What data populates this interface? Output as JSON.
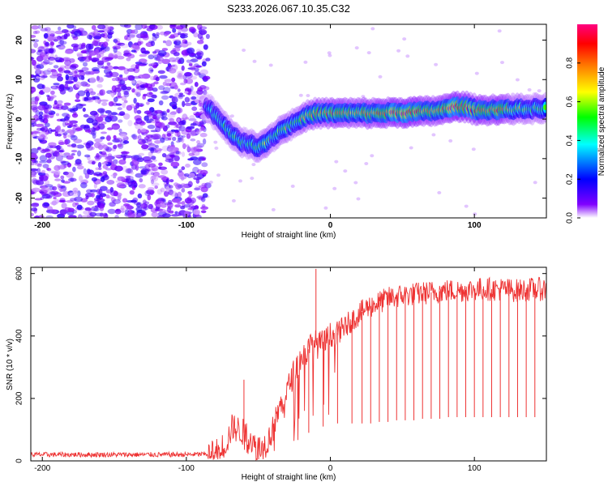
{
  "title": "S233.2026.067.10.35.C32",
  "chart_data": [
    {
      "type": "heatmap",
      "title": "S233.2026.067.10.35.C32",
      "xlabel": "Height of straight line (km)",
      "ylabel": "Frequency (Hz)",
      "xlim": [
        -208,
        150
      ],
      "ylim": [
        -25,
        24
      ],
      "xticks": [
        -200,
        -100,
        0,
        100
      ],
      "yticks": [
        -20,
        -10,
        0,
        10,
        20
      ],
      "colorbar": {
        "label": "Normalized spectral amplitude",
        "range": [
          0,
          1
        ],
        "ticks": [
          "0.0",
          "0.2",
          "0.4",
          "0.6",
          "0.8"
        ],
        "tick_values": [
          0.0,
          0.2,
          0.4,
          0.6,
          0.8
        ],
        "colors": [
          "#ffffff",
          "#8000ff",
          "#0000ff",
          "#00ffff",
          "#00ff00",
          "#ffff00",
          "#ff8000",
          "#ff0000",
          "#ff0080"
        ]
      },
      "noise_region_x": [
        -208,
        -85
      ],
      "ridge": {
        "x": [
          -85,
          -80,
          -75,
          -70,
          -65,
          -60,
          -55,
          -50,
          -45,
          -40,
          -35,
          -30,
          -25,
          -20,
          -15,
          -10,
          -5,
          0,
          10,
          20,
          30,
          40,
          50,
          60,
          70,
          80,
          85,
          90,
          95,
          100,
          105,
          110,
          120,
          130,
          140,
          150
        ],
        "frequency": [
          3,
          1,
          -1,
          -3,
          -5,
          -6,
          -6.5,
          -7,
          -6,
          -4.5,
          -3,
          -2,
          -1,
          0,
          1,
          1.5,
          1.5,
          1.5,
          1.5,
          1.5,
          1.5,
          1.6,
          1.7,
          1.8,
          2,
          2.5,
          3,
          3.2,
          3,
          2.5,
          2.2,
          2.4,
          2.5,
          2.5,
          2.6,
          2.7
        ],
        "amplitude": [
          0.35,
          0.4,
          0.45,
          0.5,
          0.5,
          0.45,
          0.55,
          0.55,
          0.6,
          0.5,
          0.55,
          0.6,
          0.6,
          0.65,
          0.65,
          0.7,
          0.75,
          0.75,
          0.75,
          0.7,
          0.8,
          0.85,
          0.9,
          0.85,
          0.75,
          0.85,
          0.9,
          0.95,
          0.85,
          0.8,
          0.75,
          0.85,
          0.8,
          0.6,
          0.55,
          0.55
        ]
      }
    },
    {
      "type": "line",
      "xlabel": "Height of straight line (km)",
      "ylabel": "SNR (10 * v/v)",
      "xlim": [
        -208,
        150
      ],
      "ylim": [
        0,
        620
      ],
      "xticks": [
        -200,
        -100,
        0,
        100
      ],
      "yticks": [
        0,
        200,
        400,
        600
      ],
      "color": "#ee3333",
      "series": [
        {
          "name": "SNR",
          "x": [
            -208,
            -180,
            -150,
            -120,
            -100,
            -85,
            -78,
            -72,
            -68,
            -64,
            -60,
            -56,
            -52,
            -48,
            -44,
            -40,
            -36,
            -32,
            -28,
            -24,
            -20,
            -16,
            -12,
            -8,
            -4,
            0,
            5,
            10,
            15,
            20,
            25,
            30,
            35,
            40,
            50,
            60,
            70,
            80,
            90,
            100,
            110,
            120,
            130,
            140,
            150
          ],
          "y": [
            20,
            20,
            20,
            20,
            20,
            22,
            30,
            60,
            110,
            100,
            90,
            80,
            40,
            40,
            60,
            100,
            160,
            200,
            250,
            300,
            330,
            350,
            380,
            370,
            380,
            400,
            410,
            430,
            450,
            470,
            490,
            500,
            510,
            520,
            530,
            535,
            540,
            545,
            545,
            550,
            550,
            550,
            545,
            550,
            550
          ]
        }
      ],
      "dropouts": {
        "x": [
          -15,
          -5,
          5,
          15,
          22,
          28,
          34,
          40,
          46,
          52,
          58,
          64,
          70,
          76,
          82,
          88,
          94,
          100,
          106,
          112,
          118,
          124,
          130,
          136,
          142
        ],
        "min_snr": [
          90,
          110,
          120,
          120,
          120,
          120,
          125,
          125,
          130,
          130,
          130,
          135,
          135,
          135,
          140,
          140,
          140,
          140,
          140,
          140,
          140,
          140,
          140,
          140,
          140
        ]
      },
      "annotations": [
        "spike to ~615 near x = -10",
        "bump ~260 near x = -60"
      ]
    }
  ]
}
